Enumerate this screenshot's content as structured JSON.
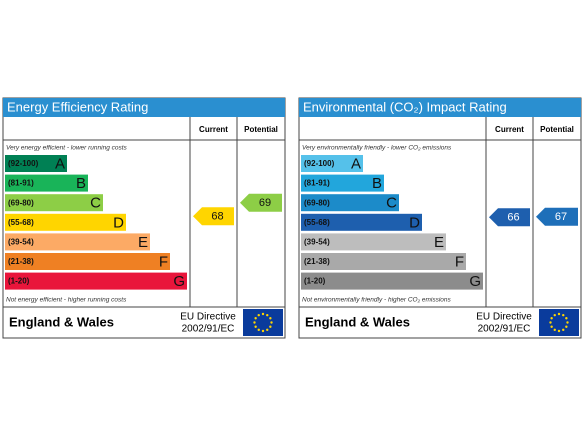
{
  "panels": [
    {
      "title": "Energy Efficiency Rating",
      "current_header": "Current",
      "potential_header": "Potential",
      "top_note": "Very energy efficient - lower running costs",
      "bottom_note": "Not energy efficient - higher running costs",
      "bands": [
        {
          "range": "(92-100)",
          "letter": "A",
          "color": "#008054"
        },
        {
          "range": "(81-91)",
          "letter": "B",
          "color": "#19b459"
        },
        {
          "range": "(69-80)",
          "letter": "C",
          "color": "#8dce46"
        },
        {
          "range": "(55-68)",
          "letter": "D",
          "color": "#ffd500"
        },
        {
          "range": "(39-54)",
          "letter": "E",
          "color": "#fcaa65"
        },
        {
          "range": "(21-38)",
          "letter": "F",
          "color": "#ef8023"
        },
        {
          "range": "(1-20)",
          "letter": "G",
          "color": "#e9153b"
        }
      ],
      "current": {
        "value": "68",
        "color": "#ffd500"
      },
      "potential": {
        "value": "69",
        "color": "#8dce46"
      },
      "region": "England & Wales",
      "directive_line1": "EU Directive",
      "directive_line2": "2002/91/EC"
    },
    {
      "title": "Environmental (CO₂) Impact Rating",
      "current_header": "Current",
      "potential_header": "Potential",
      "top_note": "Very environmentally friendly - lower CO₂ emissions",
      "bottom_note": "Not environmentally friendly - higher CO₂ emissions",
      "bands": [
        {
          "range": "(92-100)",
          "letter": "A",
          "color": "#55c1ea"
        },
        {
          "range": "(81-91)",
          "letter": "B",
          "color": "#22a6dc"
        },
        {
          "range": "(69-80)",
          "letter": "C",
          "color": "#1c8bc9"
        },
        {
          "range": "(55-68)",
          "letter": "D",
          "color": "#1e5fae"
        },
        {
          "range": "(39-54)",
          "letter": "E",
          "color": "#bdbdbd"
        },
        {
          "range": "(21-38)",
          "letter": "F",
          "color": "#a9a9a9"
        },
        {
          "range": "(1-20)",
          "letter": "G",
          "color": "#8c8c8c"
        }
      ],
      "current": {
        "value": "66",
        "color": "#1e5fae"
      },
      "potential": {
        "value": "67",
        "color": "#1e6fb9"
      },
      "region": "England & Wales",
      "directive_line1": "EU Directive",
      "directive_line2": "2002/91/EC"
    }
  ]
}
